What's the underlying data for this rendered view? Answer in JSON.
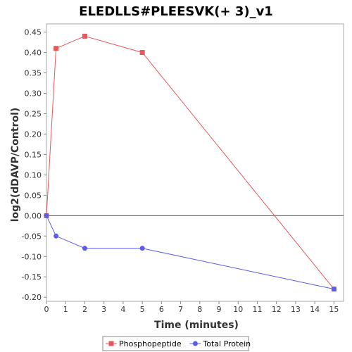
{
  "chart_data": {
    "type": "line",
    "title": "ELEDLLS#PLEESVK(+ 3)_v1",
    "xlabel": "Time (minutes)",
    "ylabel": "log2(dDAVP/Control)",
    "xlim": [
      0,
      15.5
    ],
    "ylim": [
      -0.21,
      0.47
    ],
    "x_ticks": [
      0,
      1,
      2,
      3,
      4,
      5,
      6,
      7,
      8,
      9,
      10,
      11,
      12,
      13,
      14,
      15
    ],
    "y_ticks": [
      -0.2,
      -0.15,
      -0.1,
      -0.05,
      0.0,
      0.05,
      0.1,
      0.15,
      0.2,
      0.25,
      0.3,
      0.35,
      0.4,
      0.45
    ],
    "y_tick_labels": [
      "-0.20",
      "-0.15",
      "-0.10",
      "-0.05",
      "0.00",
      "0.05",
      "0.10",
      "0.15",
      "0.20",
      "0.25",
      "0.30",
      "0.35",
      "0.40",
      "0.45"
    ],
    "zero_line": true,
    "grid": false,
    "legend_position": "bottom",
    "series": [
      {
        "name": "Phosphopeptide",
        "color": "#e8575a",
        "marker": "square",
        "x": [
          0,
          0.5,
          2,
          5,
          15
        ],
        "y": [
          0.0,
          0.41,
          0.44,
          0.4,
          -0.18
        ]
      },
      {
        "name": "Total Protein",
        "color": "#5b5be8",
        "marker": "circle",
        "x": [
          0,
          0.5,
          2,
          5,
          15
        ],
        "y": [
          0.0,
          -0.05,
          -0.08,
          -0.08,
          -0.18
        ]
      }
    ]
  }
}
